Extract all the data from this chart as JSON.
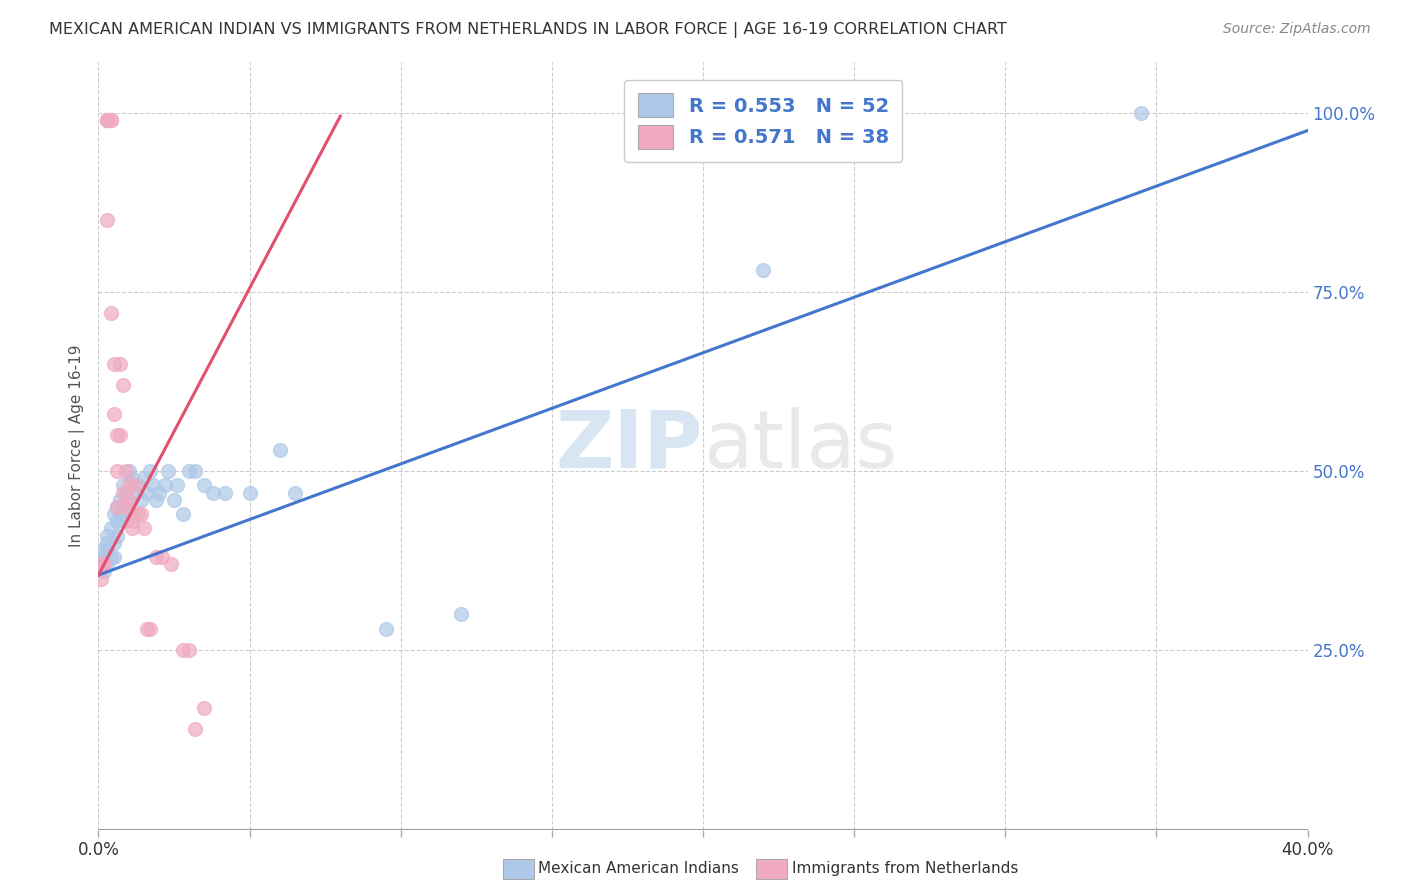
{
  "title": "MEXICAN AMERICAN INDIAN VS IMMIGRANTS FROM NETHERLANDS IN LABOR FORCE | AGE 16-19 CORRELATION CHART",
  "source": "Source: ZipAtlas.com",
  "ylabel": "In Labor Force | Age 16-19",
  "legend_blue_r": "R = 0.553",
  "legend_blue_n": "N = 52",
  "legend_pink_r": "R = 0.571",
  "legend_pink_n": "N = 38",
  "blue_color": "#adc8e8",
  "pink_color": "#f0aac0",
  "blue_line_color": "#4477cc",
  "pink_line_color": "#e05070",
  "watermark_zip": "ZIP",
  "watermark_atlas": "atlas",
  "blue_scatter_x": [
    0.001,
    0.001,
    0.002,
    0.002,
    0.003,
    0.003,
    0.003,
    0.003,
    0.004,
    0.004,
    0.005,
    0.005,
    0.005,
    0.006,
    0.006,
    0.006,
    0.007,
    0.007,
    0.008,
    0.008,
    0.009,
    0.009,
    0.01,
    0.01,
    0.011,
    0.011,
    0.012,
    0.013,
    0.014,
    0.015,
    0.016,
    0.017,
    0.018,
    0.019,
    0.02,
    0.022,
    0.023,
    0.025,
    0.026,
    0.028,
    0.03,
    0.032,
    0.035,
    0.038,
    0.042,
    0.05,
    0.06,
    0.065,
    0.095,
    0.12,
    0.22,
    0.345
  ],
  "blue_scatter_y": [
    0.37,
    0.39,
    0.36,
    0.38,
    0.41,
    0.37,
    0.39,
    0.4,
    0.42,
    0.38,
    0.44,
    0.4,
    0.38,
    0.43,
    0.45,
    0.41,
    0.46,
    0.44,
    0.48,
    0.43,
    0.47,
    0.45,
    0.5,
    0.46,
    0.49,
    0.44,
    0.47,
    0.48,
    0.46,
    0.49,
    0.47,
    0.5,
    0.48,
    0.46,
    0.47,
    0.48,
    0.5,
    0.46,
    0.48,
    0.44,
    0.5,
    0.5,
    0.48,
    0.47,
    0.47,
    0.47,
    0.53,
    0.47,
    0.28,
    0.3,
    0.78,
    1.0
  ],
  "pink_scatter_x": [
    0.001,
    0.001,
    0.002,
    0.003,
    0.003,
    0.003,
    0.003,
    0.004,
    0.004,
    0.004,
    0.005,
    0.005,
    0.006,
    0.006,
    0.006,
    0.007,
    0.007,
    0.008,
    0.008,
    0.009,
    0.009,
    0.01,
    0.01,
    0.011,
    0.011,
    0.012,
    0.013,
    0.014,
    0.015,
    0.016,
    0.017,
    0.019,
    0.021,
    0.024,
    0.028,
    0.03,
    0.032,
    0.035
  ],
  "pink_scatter_y": [
    0.37,
    0.35,
    0.37,
    0.99,
    0.99,
    0.99,
    0.85,
    0.99,
    0.99,
    0.72,
    0.65,
    0.58,
    0.55,
    0.5,
    0.45,
    0.55,
    0.65,
    0.47,
    0.62,
    0.5,
    0.45,
    0.46,
    0.48,
    0.43,
    0.42,
    0.48,
    0.44,
    0.44,
    0.42,
    0.28,
    0.28,
    0.38,
    0.38,
    0.37,
    0.25,
    0.25,
    0.14,
    0.17
  ],
  "blue_line_x": [
    0.0,
    0.4
  ],
  "blue_line_y": [
    0.355,
    0.975
  ],
  "pink_line_x": [
    0.0,
    0.08
  ],
  "pink_line_y": [
    0.355,
    0.995
  ],
  "xmin": 0.0,
  "xmax": 0.4,
  "ymin": 0.0,
  "ymax": 1.07,
  "xtick_count": 9,
  "ytick_positions": [
    0.0,
    0.25,
    0.5,
    0.75,
    1.0
  ],
  "ytick_labels_right": [
    "",
    "25.0%",
    "50.0%",
    "75.0%",
    "100.0%"
  ],
  "legend_label_blue": "Mexican American Indians",
  "legend_label_pink": "Immigrants from Netherlands"
}
